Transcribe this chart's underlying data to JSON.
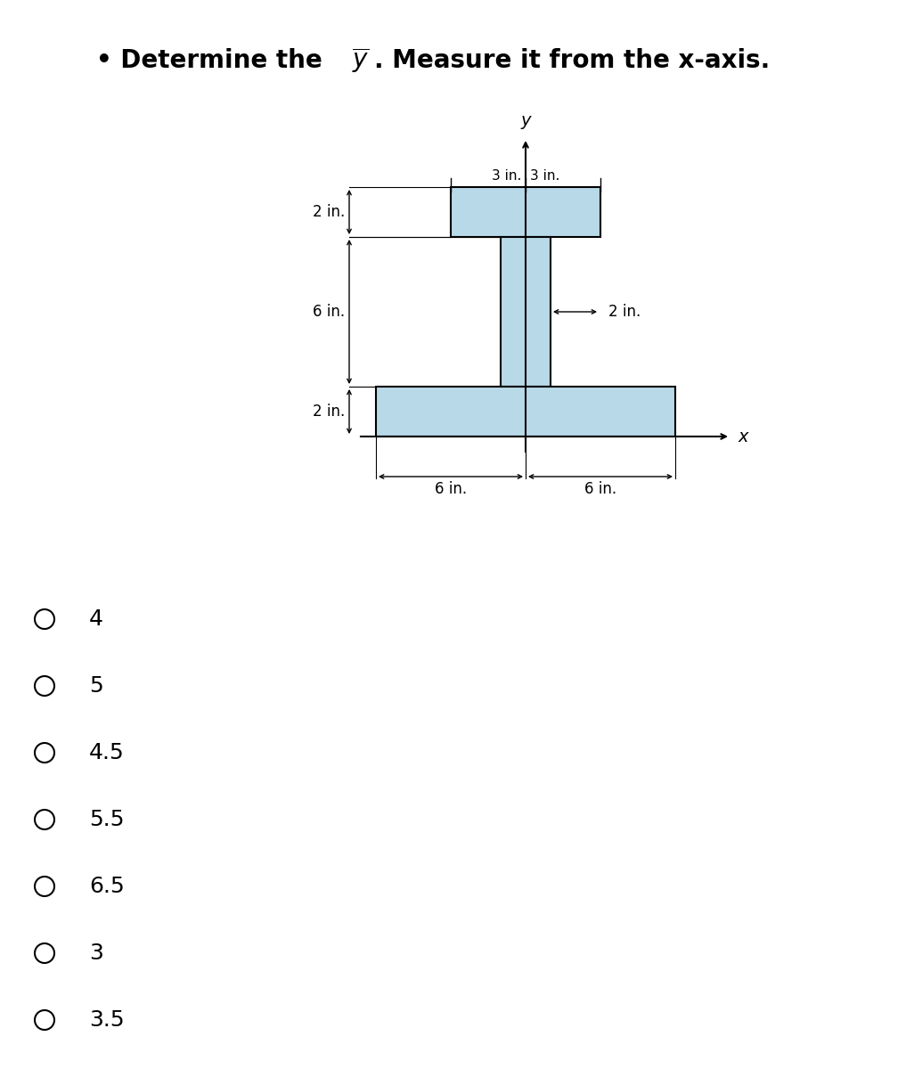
{
  "bg_color": "#ffffff",
  "shape_fill": "#b8d9e8",
  "shape_edge": "#000000",
  "choices": [
    "4",
    "5",
    "4.5",
    "5.5",
    "6.5",
    "3",
    "3.5"
  ],
  "fig_width": 10.26,
  "fig_height": 12.0,
  "title_text1": "• Determine the ",
  "title_ybar": "$\\overline{y}$",
  "title_text2": ". Measure it from the x-axis."
}
